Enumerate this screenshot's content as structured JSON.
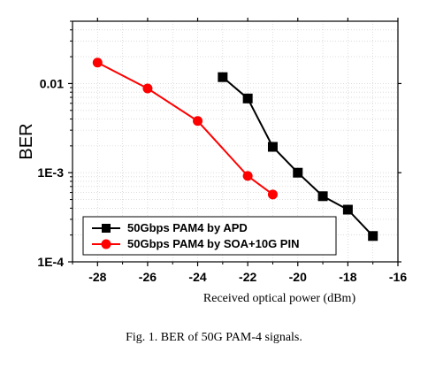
{
  "chart_data": {
    "type": "line",
    "xlabel": "Received optical power (dBm)",
    "ylabel": "BER",
    "xlim": [
      -29,
      -16
    ],
    "ylim": [
      0.0001,
      0.05
    ],
    "yscale": "log",
    "x_ticks": [
      -28,
      -26,
      -24,
      -22,
      -20,
      -18,
      -16
    ],
    "x_tick_labels": [
      "-28",
      "-26",
      "-24",
      "-22",
      "-20",
      "-18",
      "-16"
    ],
    "y_ticks": [
      0.01,
      0.001,
      0.0001
    ],
    "y_tick_labels": [
      "0.01",
      "1E-3",
      "1E-4"
    ],
    "grid": true,
    "legend_position": "bottom-left",
    "series": [
      {
        "name": "50Gbps PAM4 by APD",
        "color": "#000000",
        "marker": "square",
        "x": [
          -23,
          -22,
          -21,
          -20,
          -19,
          -18,
          -17
        ],
        "y": [
          0.0118,
          0.0068,
          0.00195,
          0.001,
          0.000545,
          0.000385,
          0.000195
        ]
      },
      {
        "name": "50Gbps PAM4 by SOA+10G PIN",
        "color": "#ff0000",
        "marker": "circle",
        "x": [
          -28,
          -26,
          -24,
          -22,
          -21
        ],
        "y": [
          0.0172,
          0.0088,
          0.0038,
          0.00092,
          0.00057
        ]
      }
    ]
  },
  "caption": "Fig. 1. BER of 50G PAM-4 signals."
}
